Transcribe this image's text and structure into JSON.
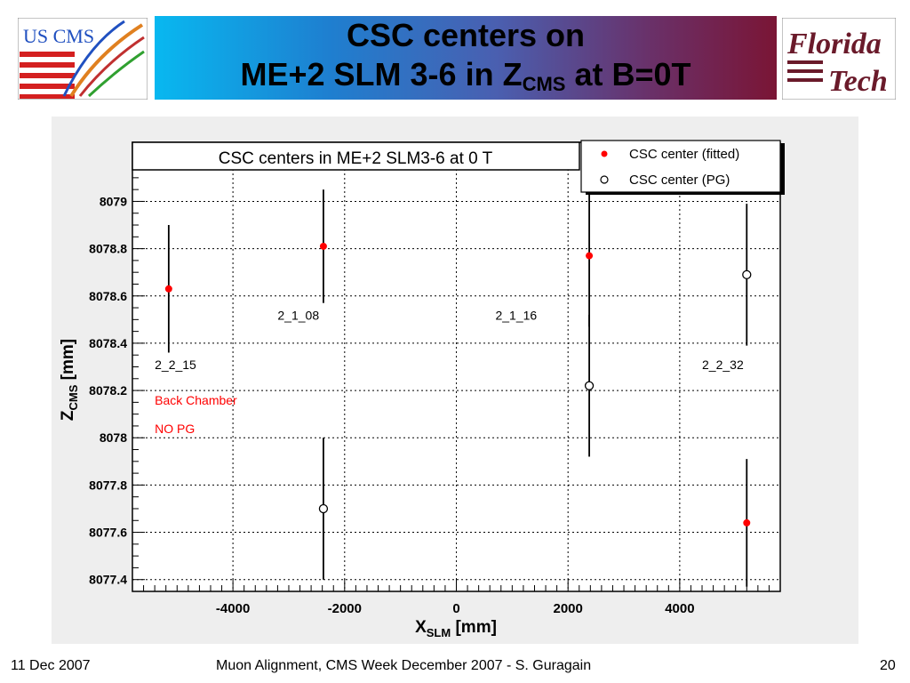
{
  "header": {
    "title_line1": "CSC centers on",
    "title_line2_pre": "ME+2 SLM 3-6 in Z",
    "title_line2_sub": "CMS",
    "title_line2_post": " at B=0T",
    "banner_colors": [
      "#08b8f0",
      "#4a5fb0",
      "#7a1535"
    ]
  },
  "logos": {
    "left_text": "US CMS",
    "right_line1": "Florida",
    "right_line2": "Tech"
  },
  "footer": {
    "date": "11 Dec 2007",
    "center": "Muon Alignment, CMS Week December 2007  - S. Guragain",
    "page": "20"
  },
  "chart_data": {
    "type": "scatter",
    "title": "CSC centers in ME+2 SLM3-6 at 0 T",
    "xlabel": "X",
    "xlabel_sub": "SLM",
    "xlabel_unit": " [mm]",
    "ylabel": "Z",
    "ylabel_sub": "CMS",
    "ylabel_unit": " [mm]",
    "xlim": [
      -5800,
      5800
    ],
    "ylim": [
      8077.35,
      8079.25
    ],
    "x_ticks": [
      -4000,
      -2000,
      0,
      2000,
      4000
    ],
    "x_tick_labels": [
      "-4000",
      "-2000",
      "0",
      "2000",
      "4000"
    ],
    "y_ticks": [
      8077.4,
      8077.6,
      8077.8,
      8078,
      8078.2,
      8078.4,
      8078.6,
      8078.8,
      8079
    ],
    "y_tick_labels": [
      "8077.4",
      "8077.6",
      "8077.8",
      "8078",
      "8078.2",
      "8078.4",
      "8078.6",
      "8078.8",
      "8079"
    ],
    "grid": true,
    "legend_position": "top-right",
    "series": [
      {
        "name": "CSC center (fitted)",
        "marker": "filled-circle",
        "color": "#ff0000",
        "points": [
          {
            "x": -5150,
            "y": 8078.63,
            "err": 0.27
          },
          {
            "x": -2380,
            "y": 8078.81,
            "err": 0.24
          },
          {
            "x": 2380,
            "y": 8078.77,
            "err": 0.3
          },
          {
            "x": 5200,
            "y": 8077.64,
            "err": 0.27
          }
        ]
      },
      {
        "name": "CSC center (PG)",
        "marker": "open-circle",
        "color": "#000000",
        "points": [
          {
            "x": -2380,
            "y": 8077.7,
            "err": 0.3
          },
          {
            "x": 2380,
            "y": 8078.22,
            "err": 0.3
          },
          {
            "x": 5200,
            "y": 8078.69,
            "err": 0.3
          }
        ]
      }
    ],
    "annotations": [
      {
        "text": "2_1_08",
        "x": -3200,
        "y": 8078.5,
        "color": "#000000"
      },
      {
        "text": "2_1_16",
        "x": 700,
        "y": 8078.5,
        "color": "#000000"
      },
      {
        "text": "2_2_15",
        "x": -5400,
        "y": 8078.29,
        "color": "#000000"
      },
      {
        "text": "2_2_32",
        "x": 4400,
        "y": 8078.29,
        "color": "#000000"
      },
      {
        "text": "Back Chamber",
        "x": -5400,
        "y": 8078.14,
        "color": "#ff0000"
      },
      {
        "text": "NO PG",
        "x": -5400,
        "y": 8078.02,
        "color": "#ff0000"
      }
    ]
  }
}
